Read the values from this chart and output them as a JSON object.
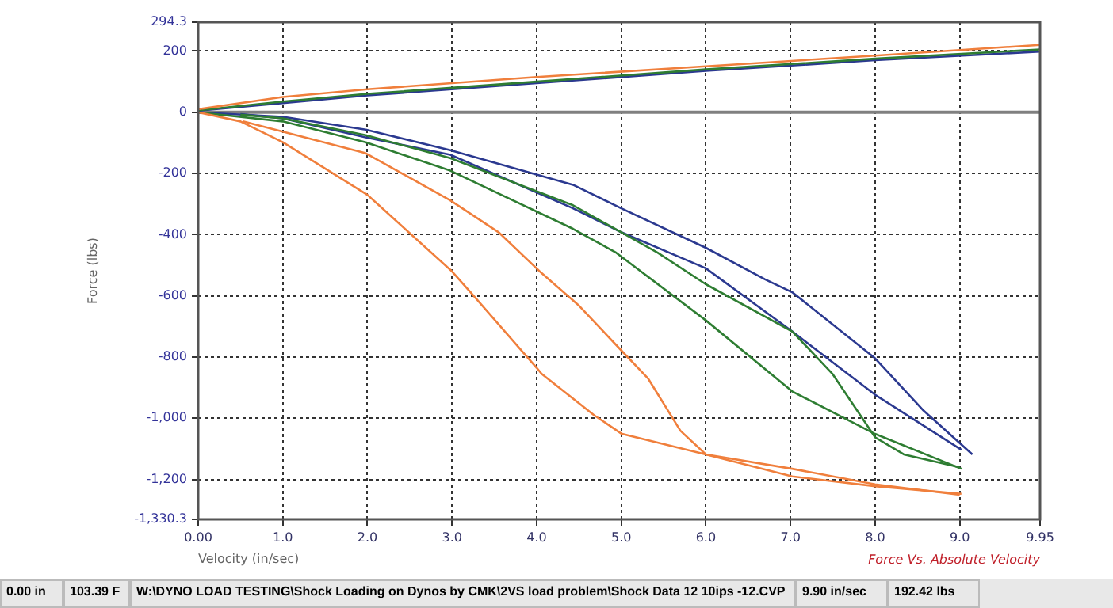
{
  "chart_data": {
    "type": "line",
    "xlabel": "Velocity (in/sec)",
    "ylabel": "Force (lbs)",
    "annotations": [
      "Force Vs. Absolute Velocity",
      "0.00 in",
      "103.39 F",
      "W:\\DYNO LOAD TESTING\\Shock Loading on Dynos by CMK\\2VS load problem\\Shock Data 12 10ips -12.CVP",
      "9.90 in/sec",
      "192.42 lbs"
    ],
    "xlim": [
      0,
      9.95
    ],
    "ylim": [
      -1330.3,
      294.3
    ],
    "xticks": [
      {
        "value": 0,
        "label": "0.00"
      },
      {
        "value": 1,
        "label": "1.0"
      },
      {
        "value": 2,
        "label": "2.0"
      },
      {
        "value": 3,
        "label": "3.0"
      },
      {
        "value": 4,
        "label": "4.0"
      },
      {
        "value": 5,
        "label": "5.0"
      },
      {
        "value": 6,
        "label": "6.0"
      },
      {
        "value": 7,
        "label": "7.0"
      },
      {
        "value": 8,
        "label": "8.0"
      },
      {
        "value": 9,
        "label": "9.0"
      },
      9.95
    ],
    "yticks": [
      {
        "value": -1330.3,
        "label": "-1,330.3"
      },
      {
        "value": -1200,
        "label": "-1,200"
      },
      {
        "value": -1000,
        "label": "-1,000"
      },
      -800,
      -600,
      -400,
      -200,
      0,
      200,
      294.3
    ],
    "grid": true,
    "line_style": "solid",
    "marker": "none",
    "ref_lines": [
      {
        "axis": "y",
        "value": 0,
        "color": "#808080"
      }
    ],
    "series": [
      {
        "color": "#f07f3c",
        "x": [
          0,
          1,
          2,
          4,
          6,
          8,
          9.95
        ],
        "values": [
          10,
          50,
          75,
          115,
          150,
          185,
          220
        ]
      },
      {
        "color": "#2e7d32",
        "x": [
          0,
          1,
          2,
          4,
          6,
          8,
          9.95
        ],
        "values": [
          6,
          35,
          60,
          100,
          140,
          175,
          205
        ]
      },
      {
        "color": "#2b3990",
        "x": [
          0,
          1,
          2,
          4,
          6,
          8,
          9.95
        ],
        "values": [
          5,
          30,
          55,
          95,
          135,
          170,
          198
        ]
      },
      {
        "color": "#f07f3c",
        "x": [
          0,
          0.5,
          1,
          2,
          3,
          3.25,
          4,
          4.06,
          4.68,
          5,
          6,
          7.02,
          8,
          9.02
        ],
        "values": [
          0,
          -30,
          -98,
          -270,
          -520,
          -598,
          -835,
          -855,
          -990,
          -1050,
          -1118,
          -1190,
          -1222,
          -1247
        ]
      },
      {
        "color": "#f07f3c",
        "x": [
          0.53,
          1.98,
          2.98,
          3.55,
          4.06,
          4.49,
          5,
          5.32,
          5.7,
          6,
          7.02,
          8,
          9.0
        ],
        "values": [
          -30,
          -134,
          -288,
          -392,
          -526,
          -629,
          -778,
          -871,
          -1041,
          -1118,
          -1165,
          -1216,
          -1250
        ]
      },
      {
        "color": "#2e7d32",
        "x": [
          0,
          1,
          1.98,
          2.98,
          4.43,
          4.94,
          6,
          7.02,
          8,
          9.02
        ],
        "values": [
          0,
          -30,
          -98,
          -191,
          -381,
          -459,
          -680,
          -912,
          -1051,
          -1165
        ]
      },
      {
        "color": "#2e7d32",
        "x": [
          0.5,
          1,
          1.98,
          2.98,
          4.43,
          5.43,
          6,
          7.02,
          7.5,
          8,
          8.34,
          9.0
        ],
        "values": [
          -8,
          -20,
          -75,
          -150,
          -304,
          -459,
          -562,
          -716,
          -856,
          -1062,
          -1118,
          -1160
        ]
      },
      {
        "color": "#2b3990",
        "x": [
          0,
          1,
          1.98,
          2.98,
          4.43,
          5,
          6,
          6.7,
          7.02,
          8,
          8.57,
          9.15
        ],
        "values": [
          0,
          -15,
          -57,
          -124,
          -237,
          -314,
          -443,
          -546,
          -588,
          -804,
          -974,
          -1118
        ]
      },
      {
        "color": "#2b3990",
        "x": [
          0.5,
          1,
          1.98,
          2.98,
          4.43,
          5,
          6,
          7.02,
          8,
          9.02
        ],
        "values": [
          -6,
          -20,
          -82,
          -139,
          -314,
          -392,
          -510,
          -716,
          -923,
          -1103
        ]
      }
    ]
  }
}
